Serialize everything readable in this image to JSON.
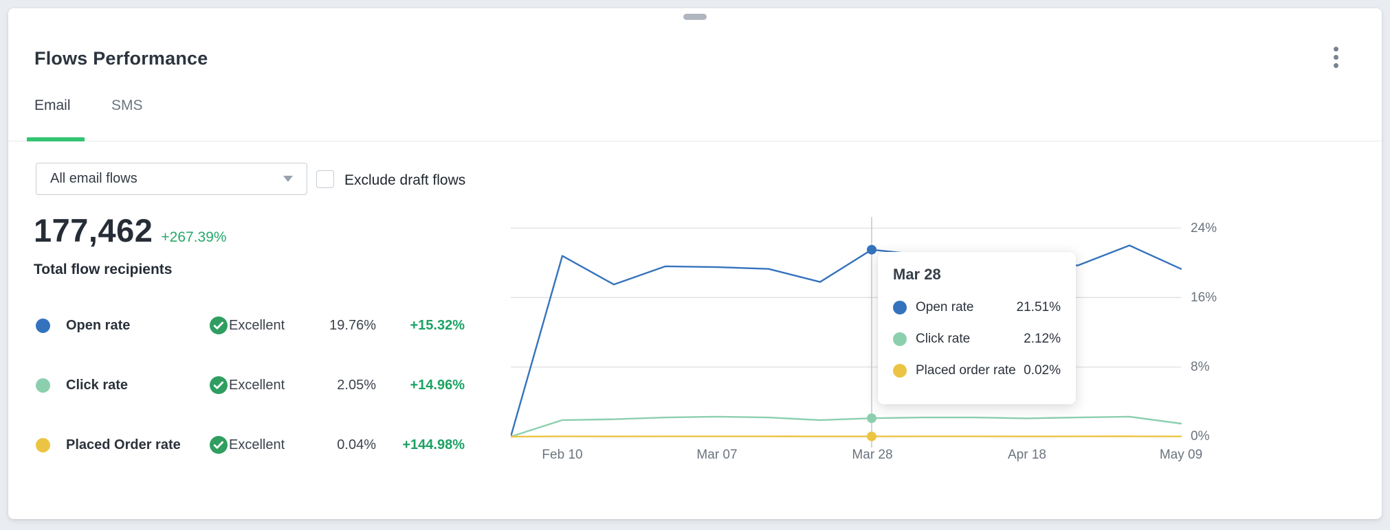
{
  "header": {
    "title": "Flows Performance"
  },
  "tabs": [
    {
      "label": "Email",
      "active": true
    },
    {
      "label": "SMS",
      "active": false
    }
  ],
  "filters": {
    "flow_select": {
      "value": "All email flows"
    },
    "exclude_draft": {
      "label": "Exclude draft flows",
      "checked": false
    }
  },
  "summary": {
    "total": "177,462",
    "change": "+267.39%",
    "label": "Total flow recipients"
  },
  "metrics": [
    {
      "name": "Open rate",
      "status": "Excellent",
      "value": "19.76%",
      "change": "+15.32%",
      "color": "#3572bd"
    },
    {
      "name": "Click rate",
      "status": "Excellent",
      "value": "2.05%",
      "change": "+14.96%",
      "color": "#8ccfae"
    },
    {
      "name": "Placed Order rate",
      "status": "Excellent",
      "value": "0.04%",
      "change": "+144.98%",
      "color": "#ecc444"
    }
  ],
  "tooltip": {
    "title": "Mar 28",
    "rows": [
      {
        "label": "Open rate",
        "value": "21.51%",
        "color": "#3572bd"
      },
      {
        "label": "Click rate",
        "value": "2.12%",
        "color": "#8ccfae"
      },
      {
        "label": "Placed order rate",
        "value": "0.02%",
        "color": "#ecc444"
      }
    ]
  },
  "chart_data": {
    "type": "line",
    "n_points": 14,
    "x_tick_labels": [
      {
        "index": 1,
        "label": "Feb 10"
      },
      {
        "index": 4,
        "label": "Mar 07"
      },
      {
        "index": 7,
        "label": "Mar 28"
      },
      {
        "index": 10,
        "label": "Apr 18"
      },
      {
        "index": 13,
        "label": "May 09"
      }
    ],
    "y_ticks": [
      "24%",
      "16%",
      "8%",
      "0%"
    ],
    "y_tick_values": [
      24,
      16,
      8,
      0
    ],
    "ylim": [
      0,
      24
    ],
    "y_axis_side": "right",
    "grid": "horizontal",
    "legend_position": "none",
    "hover_index": 7,
    "series": [
      {
        "name": "Open rate",
        "color": "#3572bd",
        "values": [
          0,
          20.8,
          17.5,
          19.6,
          19.5,
          19.3,
          17.8,
          21.51,
          20.9,
          20.3,
          19.8,
          19.7,
          22.0,
          19.3
        ]
      },
      {
        "name": "Click rate",
        "color": "#8ccfae",
        "values": [
          0,
          1.9,
          2.0,
          2.2,
          2.3,
          2.2,
          1.9,
          2.12,
          2.2,
          2.2,
          2.1,
          2.2,
          2.3,
          1.5
        ]
      },
      {
        "name": "Placed order rate",
        "color": "#ecc444",
        "values": [
          0,
          0.03,
          0.02,
          0.03,
          0.03,
          0.03,
          0.02,
          0.02,
          0.03,
          0.03,
          0.02,
          0.03,
          0.04,
          0.02
        ]
      }
    ]
  },
  "icons": {
    "kebab_menu": "⋮",
    "dropdown_caret": "▾",
    "check_circle": "✓"
  },
  "colors": {
    "accent_green": "#33c471",
    "positive_green": "#1ba263",
    "summary_green": "#27a76a",
    "badge_green": "#2f9e60",
    "background": "#e9ecf0",
    "gridline": "#d9dcdf"
  }
}
